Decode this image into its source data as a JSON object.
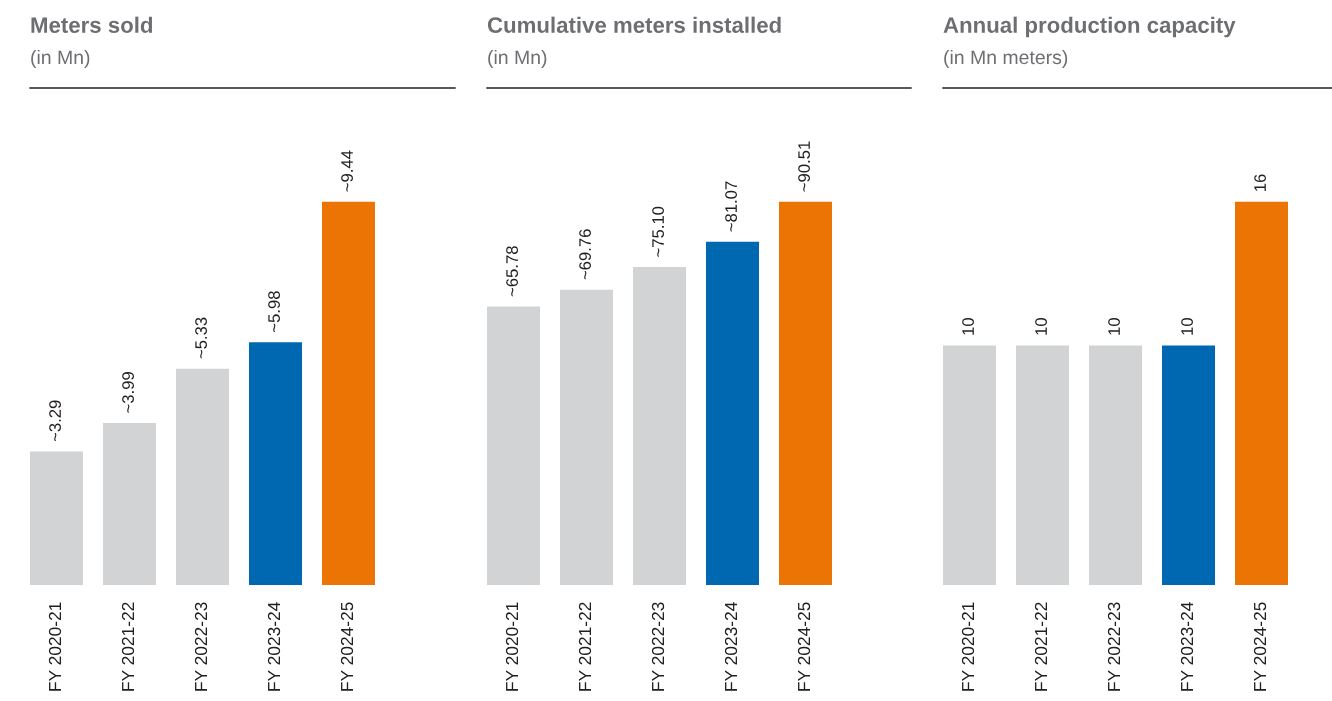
{
  "chart_data": [
    {
      "type": "bar",
      "title": "Meters sold",
      "subtitle": "(in Mn)",
      "categories": [
        "FY 2020-21",
        "FY 2021-22",
        "FY 2022-23",
        "FY 2023-24",
        "FY 2024-25"
      ],
      "values": [
        3.29,
        3.99,
        5.33,
        5.98,
        9.44
      ],
      "colors": [
        "#d1d3d4",
        "#d1d3d4",
        "#d1d3d4",
        "#0067b1",
        "#ec7404"
      ],
      "value_labels": [
        "~3.29",
        "~3.99",
        "~5.33",
        "~5.98",
        "~9.44"
      ],
      "tick_labels": "x"
    },
    {
      "type": "bar",
      "title": "Cumulative meters installed",
      "subtitle": "(in Mn)",
      "categories": [
        "FY 2020-21",
        "FY 2021-22",
        "FY 2022-23",
        "FY 2023-24",
        "FY 2024-25"
      ],
      "values": [
        65.78,
        69.76,
        75.1,
        81.07,
        90.51
      ],
      "colors": [
        "#d1d3d4",
        "#d1d3d4",
        "#d1d3d4",
        "#0067b1",
        "#ec7404"
      ],
      "value_labels": [
        "~65.78",
        "~69.76",
        "~75.10",
        "~81.07",
        "~90.51"
      ],
      "tick_labels": "x"
    },
    {
      "type": "bar",
      "title": "Annual production capacity",
      "subtitle": "(in Mn meters)",
      "categories": [
        "FY 2020-21",
        "FY 2021-22",
        "FY 2022-23",
        "FY 2023-24",
        "FY 2024-25"
      ],
      "values": [
        10,
        10,
        10,
        10,
        16
      ],
      "colors": [
        "#d1d3d4",
        "#d1d3d4",
        "#d1d3d4",
        "#0067b1",
        "#ec7404"
      ],
      "value_labels": [
        "10",
        "10",
        "10",
        "10",
        "16"
      ],
      "tick_labels": "x"
    }
  ]
}
